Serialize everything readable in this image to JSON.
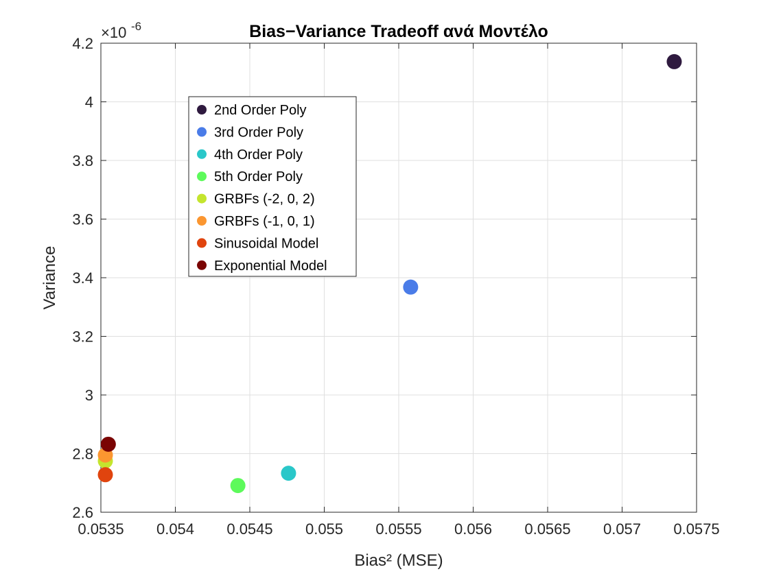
{
  "chart_data": {
    "type": "scatter",
    "title": "Bias−Variance Tradeoff ανά Μοντέλο",
    "xlabel": "Bias² (MSE)",
    "ylabel": "Variance",
    "y_exponent_label": "×10",
    "y_exponent_power": "-6",
    "xlim": [
      0.0535,
      0.0575
    ],
    "ylim": [
      2.6,
      4.2
    ],
    "x_ticks": [
      0.0535,
      0.054,
      0.0545,
      0.055,
      0.0555,
      0.056,
      0.0565,
      0.057,
      0.0575
    ],
    "x_tick_labels": [
      "0.0535",
      "0.054",
      "0.0545",
      "0.055",
      "0.0555",
      "0.056",
      "0.0565",
      "0.057",
      "0.0575"
    ],
    "y_ticks": [
      2.6,
      2.8,
      3.0,
      3.2,
      3.4,
      3.6,
      3.8,
      4.0,
      4.2
    ],
    "y_tick_labels": [
      "2.6",
      "2.8",
      "3",
      "3.2",
      "3.4",
      "3.6",
      "3.8",
      "4",
      "4.2"
    ],
    "grid": true,
    "legend_position": "upper-left",
    "series": [
      {
        "name": "2nd Order Poly",
        "color": "#2f1a3f",
        "x": 0.05735,
        "y": 4.137
      },
      {
        "name": "3rd Order Poly",
        "color": "#4a7ce8",
        "x": 0.05558,
        "y": 3.368
      },
      {
        "name": "4th Order Poly",
        "color": "#2ac7c9",
        "x": 0.05476,
        "y": 2.733
      },
      {
        "name": "5th Order Poly",
        "color": "#5dfa5b",
        "x": 0.05442,
        "y": 2.691
      },
      {
        "name": "GRBFs (-2, 0, 2)",
        "color": "#c4e52e",
        "x": 0.05353,
        "y": 2.775
      },
      {
        "name": "GRBFs (-1, 0, 1)",
        "color": "#fb9630",
        "x": 0.05353,
        "y": 2.795
      },
      {
        "name": "Sinusoidal Model",
        "color": "#e0440e",
        "x": 0.05353,
        "y": 2.728
      },
      {
        "name": "Exponential Model",
        "color": "#7a0403",
        "x": 0.05355,
        "y": 2.832
      }
    ]
  }
}
